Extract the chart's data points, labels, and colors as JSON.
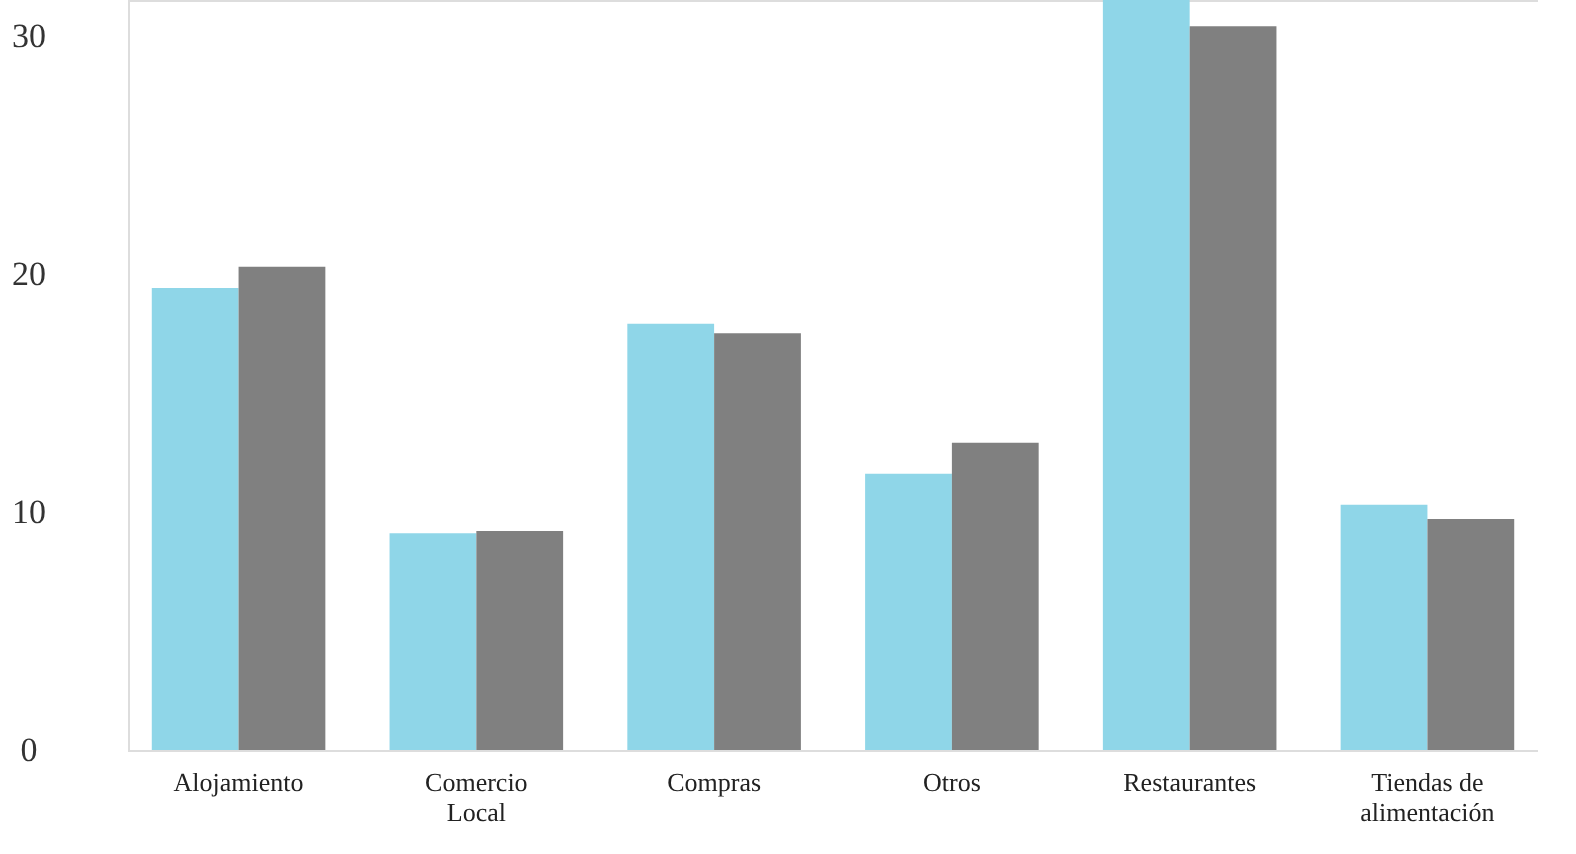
{
  "chart_data": {
    "type": "bar",
    "categories": [
      "Alojamiento",
      "Comercio Local",
      "Compras",
      "Otros",
      "Restaurantes",
      "Tiendas de alimentación"
    ],
    "series": [
      {
        "color": "#8fd6e8",
        "values": [
          19.4,
          9.1,
          17.9,
          11.6,
          31.5,
          10.3
        ]
      },
      {
        "color": "#808080",
        "values": [
          20.3,
          9.2,
          17.5,
          12.9,
          30.4,
          9.7
        ]
      }
    ],
    "ylim": [
      0,
      31.5
    ],
    "yticks": [
      0,
      10,
      20,
      30
    ],
    "grid": false,
    "legend": false
  }
}
